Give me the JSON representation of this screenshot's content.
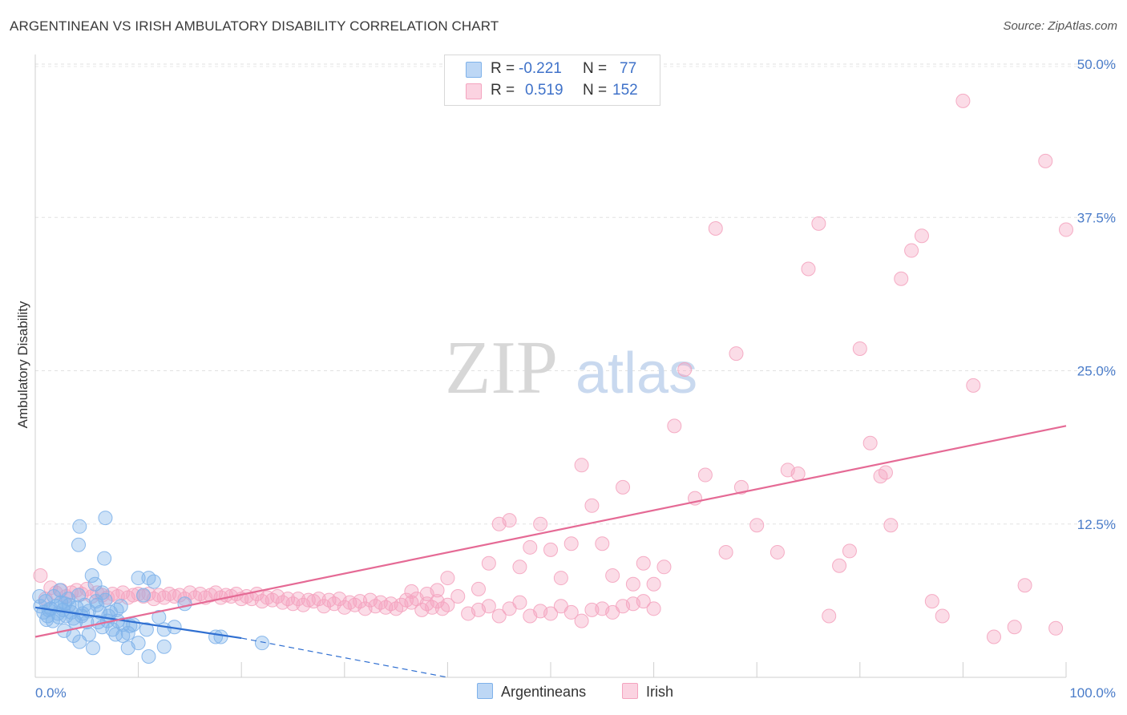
{
  "header": {
    "title": "ARGENTINEAN VS IRISH AMBULATORY DISABILITY CORRELATION CHART",
    "source": "Source: ZipAtlas.com"
  },
  "legend": {
    "rows": [
      {
        "r_label": "R =",
        "r_value": "-0.221",
        "n_label": "N =",
        "n_value": "77",
        "color": "#7fb2ea"
      },
      {
        "r_label": "R =",
        "r_value": "0.519",
        "n_label": "N =",
        "n_value": "152",
        "color": "#f4a4bf"
      }
    ]
  },
  "bottom_legend": {
    "items": [
      {
        "label": "Argentineans",
        "color": "#7fb2ea"
      },
      {
        "label": "Irish",
        "color": "#f4a4bf"
      }
    ]
  },
  "watermark": {
    "zip": "ZIP",
    "atlas": "atlas"
  },
  "chart_data": {
    "type": "scatter",
    "title": "ARGENTINEAN VS IRISH AMBULATORY DISABILITY CORRELATION CHART",
    "xlabel": "",
    "ylabel": "Ambulatory Disability",
    "xlim": [
      0,
      100
    ],
    "ylim": [
      0,
      50
    ],
    "x_tick_labels": [
      "0.0%",
      "100.0%"
    ],
    "y_ticks": [
      12.5,
      25.0,
      37.5,
      50.0
    ],
    "y_tick_labels": [
      "12.5%",
      "25.0%",
      "37.5%",
      "50.0%"
    ],
    "grid": true,
    "legend_position": "top-center",
    "series": [
      {
        "name": "Argentineans",
        "color": "#7fb2ea",
        "line_color": "#2f6fd1",
        "trend": {
          "x": [
            0,
            20
          ],
          "y": [
            5.7,
            3.2
          ],
          "dashed_to": [
            40,
            0.0
          ]
        },
        "points": [
          [
            0.5,
            5.8
          ],
          [
            0.8,
            5.3
          ],
          [
            1,
            6.2
          ],
          [
            1.2,
            5.0
          ],
          [
            1.5,
            5.6
          ],
          [
            1.7,
            4.6
          ],
          [
            2,
            5.8
          ],
          [
            2.2,
            5.2
          ],
          [
            2.5,
            6.1
          ],
          [
            2.7,
            5.5
          ],
          [
            3,
            5.0
          ],
          [
            3.2,
            6.4
          ],
          [
            3.5,
            5.3
          ],
          [
            3.7,
            4.8
          ],
          [
            4,
            5.7
          ],
          [
            4.2,
            6.7
          ],
          [
            4.5,
            5.0
          ],
          [
            4.8,
            5.9
          ],
          [
            5,
            4.5
          ],
          [
            5.2,
            5.4
          ],
          [
            5.5,
            8.3
          ],
          [
            5.8,
            7.6
          ],
          [
            6,
            5.9
          ],
          [
            6.3,
            5.3
          ],
          [
            6.5,
            4.1
          ],
          [
            6.8,
            6.3
          ],
          [
            7,
            4.6
          ],
          [
            7.3,
            5.3
          ],
          [
            7.5,
            3.9
          ],
          [
            8,
            4.6
          ],
          [
            8.3,
            5.8
          ],
          [
            8.5,
            4.3
          ],
          [
            9,
            3.6
          ],
          [
            9.5,
            4.3
          ],
          [
            10,
            8.1
          ],
          [
            10.5,
            6.7
          ],
          [
            11,
            8.1
          ],
          [
            11.5,
            7.8
          ],
          [
            12,
            4.9
          ],
          [
            12.5,
            3.9
          ],
          [
            4.3,
            12.3
          ],
          [
            6.8,
            13.0
          ],
          [
            4.2,
            10.8
          ],
          [
            6.7,
            9.7
          ],
          [
            3.7,
            3.4
          ],
          [
            4.3,
            2.9
          ],
          [
            2.8,
            3.8
          ],
          [
            5.2,
            3.5
          ],
          [
            5.6,
            2.4
          ],
          [
            7.8,
            3.5
          ],
          [
            8.5,
            3.4
          ],
          [
            9,
            2.4
          ],
          [
            10,
            2.8
          ],
          [
            11,
            1.7
          ],
          [
            12.5,
            2.5
          ],
          [
            13.5,
            4.1
          ],
          [
            14.5,
            6.0
          ],
          [
            17.5,
            3.3
          ],
          [
            18,
            3.3
          ],
          [
            22,
            2.8
          ],
          [
            1.3,
            5.5
          ],
          [
            2.3,
            4.9
          ],
          [
            3.3,
            5.9
          ],
          [
            4.6,
            5.2
          ],
          [
            6.1,
            4.5
          ],
          [
            7.1,
            5.0
          ],
          [
            1.8,
            6.6
          ],
          [
            2.9,
            6.0
          ],
          [
            3.9,
            4.5
          ],
          [
            5.9,
            6.2
          ],
          [
            7.9,
            5.5
          ],
          [
            9.2,
            4.2
          ],
          [
            10.8,
            3.9
          ],
          [
            0.4,
            6.6
          ],
          [
            1.1,
            4.7
          ],
          [
            2.4,
            7.1
          ],
          [
            6.5,
            6.9
          ]
        ]
      },
      {
        "name": "Irish",
        "color": "#f4a4bf",
        "line_color": "#e56a95",
        "trend": {
          "x": [
            0,
            100
          ],
          "y": [
            3.3,
            20.5
          ]
        },
        "points": [
          [
            0.5,
            8.3
          ],
          [
            1,
            6.4
          ],
          [
            1.5,
            7.3
          ],
          [
            2,
            6.9
          ],
          [
            2.5,
            7.1
          ],
          [
            3,
            6.6
          ],
          [
            3.5,
            6.9
          ],
          [
            4,
            7.1
          ],
          [
            4.5,
            6.8
          ],
          [
            5,
            7.2
          ],
          [
            5.5,
            6.6
          ],
          [
            6,
            6.9
          ],
          [
            6.5,
            6.7
          ],
          [
            7,
            6.5
          ],
          [
            7.5,
            6.8
          ],
          [
            8,
            6.6
          ],
          [
            8.5,
            6.9
          ],
          [
            9,
            6.5
          ],
          [
            9.5,
            6.7
          ],
          [
            10,
            6.8
          ],
          [
            10.5,
            6.6
          ],
          [
            11,
            6.8
          ],
          [
            11.5,
            6.4
          ],
          [
            12,
            6.7
          ],
          [
            12.5,
            6.5
          ],
          [
            13,
            6.8
          ],
          [
            13.5,
            6.6
          ],
          [
            14,
            6.7
          ],
          [
            14.5,
            6.4
          ],
          [
            15,
            6.9
          ],
          [
            15.5,
            6.5
          ],
          [
            16,
            6.8
          ],
          [
            16.5,
            6.5
          ],
          [
            17,
            6.7
          ],
          [
            17.5,
            6.9
          ],
          [
            18,
            6.5
          ],
          [
            18.5,
            6.7
          ],
          [
            19,
            6.6
          ],
          [
            19.5,
            6.8
          ],
          [
            20,
            6.4
          ],
          [
            20.5,
            6.6
          ],
          [
            21,
            6.4
          ],
          [
            21.5,
            6.8
          ],
          [
            22,
            6.2
          ],
          [
            22.5,
            6.5
          ],
          [
            23,
            6.3
          ],
          [
            23.5,
            6.6
          ],
          [
            24,
            6.1
          ],
          [
            24.5,
            6.4
          ],
          [
            25,
            6.0
          ],
          [
            25.5,
            6.4
          ],
          [
            26,
            5.9
          ],
          [
            26.5,
            6.3
          ],
          [
            27,
            6.2
          ],
          [
            27.5,
            6.4
          ],
          [
            28,
            5.8
          ],
          [
            28.5,
            6.3
          ],
          [
            29,
            6.0
          ],
          [
            29.5,
            6.4
          ],
          [
            30,
            5.7
          ],
          [
            30.5,
            6.1
          ],
          [
            31,
            5.9
          ],
          [
            31.5,
            6.2
          ],
          [
            32,
            5.6
          ],
          [
            32.5,
            6.3
          ],
          [
            33,
            5.8
          ],
          [
            33.5,
            6.1
          ],
          [
            34,
            5.7
          ],
          [
            34.5,
            6.0
          ],
          [
            35,
            5.6
          ],
          [
            35.5,
            5.9
          ],
          [
            36,
            6.3
          ],
          [
            36.5,
            6.1
          ],
          [
            37,
            6.4
          ],
          [
            37.5,
            5.5
          ],
          [
            38,
            6.0
          ],
          [
            38.5,
            5.7
          ],
          [
            39,
            6.2
          ],
          [
            39.5,
            5.6
          ],
          [
            40,
            5.9
          ],
          [
            41,
            6.6
          ],
          [
            42,
            5.2
          ],
          [
            43,
            5.5
          ],
          [
            44,
            5.8
          ],
          [
            45,
            5.0
          ],
          [
            46,
            5.6
          ],
          [
            47,
            6.1
          ],
          [
            48,
            5.0
          ],
          [
            49,
            5.4
          ],
          [
            50,
            5.2
          ],
          [
            51,
            5.8
          ],
          [
            52,
            5.3
          ],
          [
            53,
            4.6
          ],
          [
            54,
            5.5
          ],
          [
            55,
            5.6
          ],
          [
            56,
            5.3
          ],
          [
            57,
            5.8
          ],
          [
            58,
            6.0
          ],
          [
            59,
            6.2
          ],
          [
            60,
            5.6
          ],
          [
            36.5,
            7.0
          ],
          [
            38,
            6.8
          ],
          [
            39,
            7.1
          ],
          [
            40,
            8.1
          ],
          [
            43,
            7.2
          ],
          [
            44,
            9.3
          ],
          [
            45,
            12.5
          ],
          [
            46,
            12.8
          ],
          [
            47,
            9.0
          ],
          [
            48,
            10.6
          ],
          [
            49,
            12.5
          ],
          [
            50,
            10.4
          ],
          [
            51,
            8.1
          ],
          [
            52,
            10.9
          ],
          [
            53,
            17.3
          ],
          [
            54,
            14.0
          ],
          [
            55,
            10.9
          ],
          [
            56,
            8.3
          ],
          [
            57,
            15.5
          ],
          [
            58,
            7.6
          ],
          [
            59,
            9.3
          ],
          [
            60,
            7.6
          ],
          [
            61,
            9.0
          ],
          [
            62,
            20.5
          ],
          [
            63,
            25.1
          ],
          [
            64,
            14.6
          ],
          [
            65,
            16.5
          ],
          [
            66,
            36.6
          ],
          [
            67,
            10.2
          ],
          [
            68,
            26.4
          ],
          [
            68.5,
            15.5
          ],
          [
            70,
            12.4
          ],
          [
            72,
            10.2
          ],
          [
            73,
            16.9
          ],
          [
            74,
            16.6
          ],
          [
            75,
            33.3
          ],
          [
            76,
            37.0
          ],
          [
            77,
            5.0
          ],
          [
            78,
            9.1
          ],
          [
            79,
            10.3
          ],
          [
            80,
            26.8
          ],
          [
            81,
            19.1
          ],
          [
            82,
            16.4
          ],
          [
            82.5,
            16.7
          ],
          [
            83,
            12.4
          ],
          [
            84,
            32.5
          ],
          [
            85,
            34.8
          ],
          [
            86,
            36.0
          ],
          [
            87,
            6.2
          ],
          [
            88,
            5.0
          ],
          [
            90,
            47.0
          ],
          [
            91,
            23.8
          ],
          [
            93,
            3.3
          ],
          [
            95,
            4.1
          ],
          [
            96,
            7.5
          ],
          [
            98,
            42.1
          ],
          [
            99,
            4.0
          ],
          [
            100,
            36.5
          ]
        ]
      }
    ]
  }
}
